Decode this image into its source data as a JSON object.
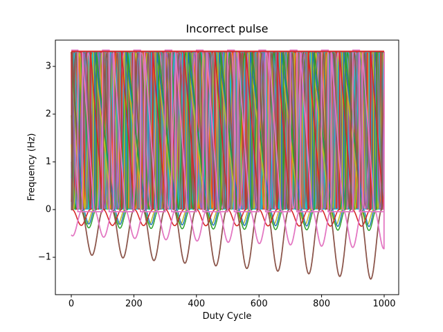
{
  "figure": {
    "title": "Incorrect pulse",
    "xlabel": "Duty Cycle",
    "ylabel": "Frequency (Hz)",
    "background": "#ffffff",
    "axis_color": "#000000"
  },
  "chart_data": {
    "type": "line",
    "title": "Incorrect pulse",
    "xlabel": "Duty Cycle",
    "ylabel": "Frequency (Hz)",
    "xlim": [
      -51,
      1046
    ],
    "ylim": [
      -1.78,
      3.55
    ],
    "x_ticks": [
      0,
      200,
      400,
      600,
      800,
      1000
    ],
    "y_ticks": [
      -1,
      0,
      1,
      2,
      3
    ],
    "y_tick_labels": [
      "−1",
      "0",
      "1",
      "2",
      "3"
    ],
    "grid": false,
    "legend": null,
    "x_range": [
      0,
      1000
    ],
    "pulse_high_level": 3.3,
    "pulse_low_level": 0.01,
    "palette": [
      "#1f77b4",
      "#ff7f0e",
      "#2ca02c",
      "#d62728",
      "#9467bd",
      "#8c564b",
      "#e377c2",
      "#7f7f7f",
      "#bcbd22",
      "#17becf"
    ],
    "const_line": {
      "color_index": 3,
      "y": 3.315,
      "line_width": 2.2
    },
    "reference_pulse": {
      "color_index": 6,
      "period": 100,
      "pulse_width": 21,
      "phase": 0,
      "high": 3.34,
      "low": -0.045,
      "line_width": 1.8
    },
    "pulse_trains": [
      {
        "color_index": 0,
        "period": 11.3,
        "phase": 2.0,
        "duty": 0.48
      },
      {
        "color_index": 1,
        "period": 13.7,
        "phase": 5.0,
        "duty": 0.55
      },
      {
        "color_index": 2,
        "period": 17.9,
        "phase": 1.0,
        "duty": 0.42
      },
      {
        "color_index": 3,
        "period": 8.9,
        "phase": 4.0,
        "duty": 0.5
      },
      {
        "color_index": 4,
        "period": 21.3,
        "phase": 9.0,
        "duty": 0.58
      },
      {
        "color_index": 5,
        "period": 15.1,
        "phase": 3.0,
        "duty": 0.45
      },
      {
        "color_index": 6,
        "period": 49.7,
        "phase": 12.0,
        "duty": 0.5
      },
      {
        "color_index": 7,
        "period": 10.1,
        "phase": 0.5,
        "duty": 0.52
      },
      {
        "color_index": 8,
        "period": 19.3,
        "phase": 7.0,
        "duty": 0.4
      },
      {
        "color_index": 9,
        "period": 12.1,
        "phase": 6.0,
        "duty": 0.47
      },
      {
        "color_index": 0,
        "period": 24.7,
        "phase": 15.0,
        "duty": 0.36
      },
      {
        "color_index": 1,
        "period": 9.7,
        "phase": 2.5,
        "duty": 0.53
      },
      {
        "color_index": 4,
        "period": 14.3,
        "phase": 8.0,
        "duty": 0.44
      },
      {
        "color_index": 7,
        "period": 27.9,
        "phase": 18.0,
        "duty": 0.57
      },
      {
        "color_index": 3,
        "period": 16.3,
        "phase": 10.0,
        "duty": 0.38
      },
      {
        "color_index": 9,
        "period": 22.1,
        "phase": 13.0,
        "duty": 0.49
      }
    ],
    "sine_traces": [
      {
        "color_index": 1,
        "period": 41,
        "phase": 11,
        "min": 0.015,
        "max": 3.285
      },
      {
        "color_index": 9,
        "period": 29,
        "phase": 3,
        "min": 0.015,
        "max": 3.285
      },
      {
        "color_index": 2,
        "period": 47,
        "phase": 25,
        "min": 0.015,
        "max": 3.285
      },
      {
        "color_index": 8,
        "period": 36,
        "phase": 17,
        "min": 0.015,
        "max": 3.285
      },
      {
        "color_index": 6,
        "period": 57,
        "phase": 40,
        "min": 0.015,
        "max": 3.285
      },
      {
        "color_index": 7,
        "period": 23,
        "phase": 10,
        "min": 0.015,
        "max": 3.285
      },
      {
        "color_index": 5,
        "period": 33,
        "phase": 6,
        "min": 0.015,
        "max": 3.285
      },
      {
        "color_index": 4,
        "period": 44,
        "phase": 30,
        "min": 0.015,
        "max": 3.285
      }
    ],
    "undershoot_sines": [
      {
        "color_index": 8,
        "period": 99.5,
        "dip_center": 50,
        "dip_width": 42,
        "depth_start": 0.3,
        "depth_end": 0.32,
        "line_width": 1.5
      },
      {
        "color_index": 0,
        "period": 99.5,
        "dip_center": 56,
        "dip_width": 37,
        "depth_start": 0.3,
        "depth_end": 0.36,
        "line_width": 1.5
      },
      {
        "color_index": 2,
        "period": 99.5,
        "dip_center": 56,
        "dip_width": 48,
        "depth_start": 0.38,
        "depth_end": 0.44,
        "line_width": 1.5
      },
      {
        "color_index": 3,
        "period": 99.5,
        "dip_center": 32,
        "dip_width": 58,
        "depth_start": 0.33,
        "depth_end": 0.35,
        "line_width": 1.6
      },
      {
        "color_index": 5,
        "period": 99.0,
        "dip_center": 66,
        "dip_width": 71,
        "depth_start": 0.92,
        "depth_end": 1.48,
        "line_width": 1.8
      },
      {
        "color_index": 6,
        "period": 99.5,
        "dip_center": 4,
        "dip_width": 62,
        "depth_start": 0.55,
        "depth_end": 0.82,
        "line_width": 1.8
      }
    ]
  }
}
